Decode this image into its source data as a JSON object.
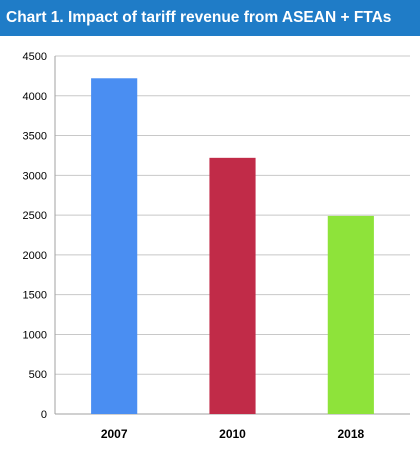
{
  "header": {
    "title": "Chart 1. Impact of tariff revenue from ASEAN + FTAs"
  },
  "colors": {
    "title_background": "#1f7cc7",
    "title_text": "#ffffff",
    "grid": "#c8c8c8"
  },
  "chart_data": {
    "type": "bar",
    "title": "Chart 1. Impact of tariff revenue from ASEAN + FTAs",
    "xlabel": "",
    "ylabel": "",
    "categories": [
      "2007",
      "2010",
      "2018"
    ],
    "values": [
      4220,
      3220,
      2490
    ],
    "bar_colors": [
      "#4a8ef2",
      "#c12b48",
      "#8ee33a"
    ],
    "ylim": [
      0,
      4500
    ],
    "yticks": [
      0,
      500,
      1000,
      1500,
      2000,
      2500,
      3000,
      3500,
      4000,
      4500
    ],
    "grid": true,
    "legend": "none"
  }
}
